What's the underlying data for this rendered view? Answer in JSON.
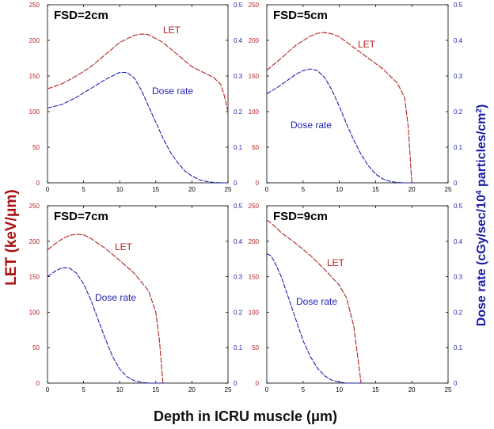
{
  "figure": {
    "ylabel_left": "LET (keV/μm)",
    "ylabel_right_prefix": "Dose rate (cGy/sec/10",
    "ylabel_right_sup1": "4",
    "ylabel_right_mid": " particles/cm",
    "ylabel_right_sup2": "2",
    "ylabel_right_suffix": ")",
    "xlabel": "Depth in ICRU muscle (μm)",
    "colors": {
      "let": "#b22222",
      "dose": "#1f1fb0"
    }
  },
  "chart_data": [
    {
      "type": "line",
      "title": "FSD=2cm",
      "xlim": [
        0,
        25
      ],
      "ylim_left": [
        0,
        250
      ],
      "ylim_right": [
        0,
        0.5
      ],
      "xticks": [
        0,
        5,
        10,
        15,
        20,
        25
      ],
      "yticks_left": [
        0,
        50,
        100,
        150,
        200,
        250
      ],
      "yticks_right": [
        0,
        0.1,
        0.2,
        0.3,
        0.4,
        0.5
      ],
      "series": [
        {
          "name": "LET",
          "axis": "left",
          "label": "LET",
          "x": [
            0,
            2,
            4,
            6,
            8,
            10,
            12,
            13,
            14,
            16,
            18,
            20,
            22,
            23,
            24,
            24.5,
            25
          ],
          "y": [
            132,
            139,
            150,
            163,
            180,
            197,
            207,
            209,
            208,
            197,
            180,
            163,
            153,
            148,
            138,
            122,
            100
          ]
        },
        {
          "name": "Dose rate",
          "axis": "right",
          "label": "Dose rate",
          "x": [
            0,
            2,
            4,
            6,
            8,
            10,
            11,
            12,
            13,
            14,
            15,
            16,
            17,
            18,
            19,
            20,
            21,
            22,
            23,
            24,
            25
          ],
          "y": [
            0.21,
            0.22,
            0.24,
            0.265,
            0.29,
            0.31,
            0.31,
            0.295,
            0.26,
            0.215,
            0.17,
            0.125,
            0.087,
            0.057,
            0.034,
            0.019,
            0.009,
            0.004,
            0.001,
            0,
            0
          ]
        }
      ]
    },
    {
      "type": "line",
      "title": "FSD=5cm",
      "xlim": [
        0,
        25
      ],
      "ylim_left": [
        0,
        250
      ],
      "ylim_right": [
        0,
        0.5
      ],
      "xticks": [
        0,
        5,
        10,
        15,
        20,
        25
      ],
      "yticks_left": [
        0,
        50,
        100,
        150,
        200,
        250
      ],
      "yticks_right": [
        0,
        0.1,
        0.2,
        0.3,
        0.4,
        0.5
      ],
      "series": [
        {
          "name": "LET",
          "axis": "left",
          "label": "LET",
          "x": [
            0,
            2,
            4,
            6,
            7,
            8,
            9,
            10,
            12,
            14,
            16,
            18,
            19,
            19.5,
            20
          ],
          "y": [
            158,
            175,
            193,
            206,
            210,
            211,
            209,
            205,
            190,
            175,
            160,
            140,
            120,
            80,
            0
          ]
        },
        {
          "name": "Dose rate",
          "axis": "right",
          "label": "Dose rate",
          "x": [
            0,
            2,
            4,
            5,
            6,
            7,
            8,
            9,
            10,
            11,
            12,
            13,
            14,
            15,
            16,
            17,
            18,
            19,
            20
          ],
          "y": [
            0.25,
            0.275,
            0.305,
            0.315,
            0.32,
            0.315,
            0.295,
            0.26,
            0.215,
            0.165,
            0.12,
            0.08,
            0.048,
            0.025,
            0.011,
            0.004,
            0.001,
            0,
            0
          ]
        }
      ]
    },
    {
      "type": "line",
      "title": "FSD=7cm",
      "xlim": [
        0,
        25
      ],
      "ylim_left": [
        0,
        250
      ],
      "ylim_right": [
        0,
        0.5
      ],
      "xticks": [
        0,
        5,
        10,
        15,
        20,
        25
      ],
      "yticks_left": [
        0,
        50,
        100,
        150,
        200,
        250
      ],
      "yticks_right": [
        0,
        0.1,
        0.2,
        0.3,
        0.4,
        0.5
      ],
      "series": [
        {
          "name": "LET",
          "axis": "left",
          "label": "LET",
          "x": [
            0,
            1,
            2,
            3,
            4,
            5,
            6,
            8,
            10,
            12,
            14,
            15,
            15.5,
            16
          ],
          "y": [
            188,
            196,
            203,
            208,
            210,
            209,
            204,
            190,
            173,
            155,
            130,
            100,
            60,
            0
          ]
        },
        {
          "name": "Dose rate",
          "axis": "right",
          "label": "Dose rate",
          "x": [
            0,
            1,
            2,
            3,
            4,
            5,
            6,
            7,
            8,
            9,
            10,
            11,
            12,
            13,
            14,
            15,
            16
          ],
          "y": [
            0.3,
            0.315,
            0.325,
            0.325,
            0.31,
            0.28,
            0.235,
            0.18,
            0.125,
            0.075,
            0.04,
            0.018,
            0.007,
            0.002,
            0,
            0,
            0
          ]
        }
      ]
    },
    {
      "type": "line",
      "title": "FSD=9cm",
      "xlim": [
        0,
        25
      ],
      "ylim_left": [
        0,
        250
      ],
      "ylim_right": [
        0,
        0.5
      ],
      "xticks": [
        0,
        5,
        10,
        15,
        20,
        25
      ],
      "yticks_left": [
        0,
        50,
        100,
        150,
        200,
        250
      ],
      "yticks_right": [
        0,
        0.1,
        0.2,
        0.3,
        0.4,
        0.5
      ],
      "series": [
        {
          "name": "LET",
          "axis": "left",
          "label": "LET",
          "x": [
            0,
            1,
            2,
            4,
            6,
            8,
            10,
            11,
            12,
            12.5,
            13
          ],
          "y": [
            230,
            222,
            212,
            197,
            180,
            160,
            138,
            120,
            80,
            40,
            0
          ]
        },
        {
          "name": "Dose rate",
          "axis": "right",
          "label": "Dose rate",
          "x": [
            0,
            0.5,
            1,
            2,
            3,
            4,
            5,
            6,
            7,
            8,
            9,
            10,
            11,
            12,
            13
          ],
          "y": [
            0.365,
            0.36,
            0.345,
            0.3,
            0.24,
            0.18,
            0.12,
            0.075,
            0.042,
            0.02,
            0.008,
            0.003,
            0,
            0,
            0
          ]
        }
      ]
    }
  ]
}
